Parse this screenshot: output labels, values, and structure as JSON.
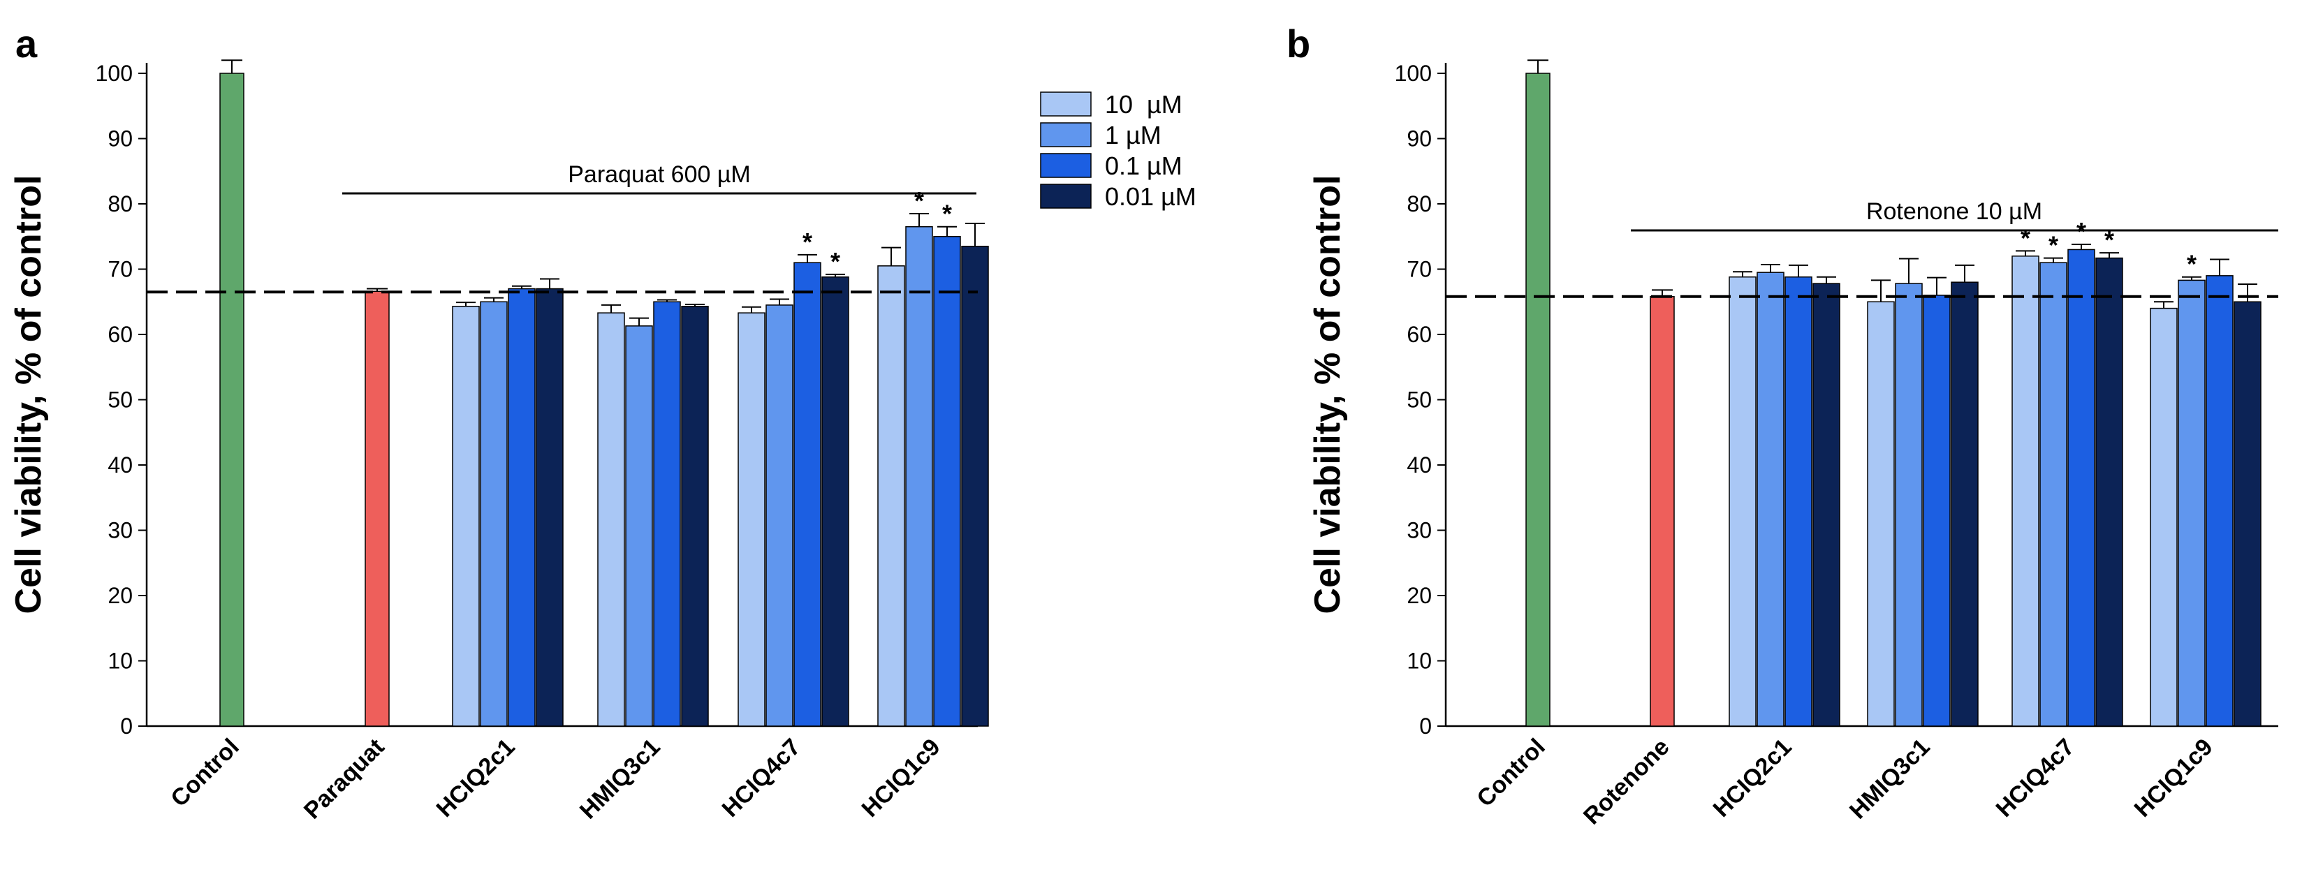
{
  "chart_data": [
    {
      "type": "bar",
      "panel": "a",
      "ylabel": "Cell viability, % of control",
      "ylim": [
        0,
        100
      ],
      "yticks": [
        0,
        10,
        20,
        30,
        40,
        50,
        60,
        70,
        80,
        90,
        100
      ],
      "reference_line": 66.5,
      "treatment_label": "Paraquat 600 µM",
      "controls": [
        {
          "category": "Control",
          "value": 100,
          "error": 2.0,
          "color": "#5fa76b"
        },
        {
          "category": "Paraquat",
          "value": 66.6,
          "error": 0.4,
          "color": "#ee5f5b"
        }
      ],
      "categories": [
        "HCIQ2c1",
        "HMIQ3c1",
        "HCIQ4c7",
        "HCIQ1c9"
      ],
      "series": [
        {
          "name": "10  µM",
          "color": "#a9c7f5",
          "values": [
            64.3,
            63.3,
            63.3,
            70.5
          ],
          "errors": [
            0.6,
            1.2,
            0.9,
            2.8
          ],
          "significant": [
            false,
            false,
            false,
            false
          ]
        },
        {
          "name": "1 µM",
          "color": "#6096ee",
          "values": [
            65.0,
            61.3,
            64.5,
            76.5
          ],
          "errors": [
            0.6,
            1.2,
            0.9,
            2.0
          ],
          "significant": [
            false,
            false,
            false,
            true
          ]
        },
        {
          "name": "0.1 µM",
          "color": "#1c5fe2",
          "values": [
            67.0,
            65.0,
            71.0,
            75.0
          ],
          "errors": [
            0.4,
            0.3,
            1.2,
            1.5
          ],
          "significant": [
            false,
            false,
            true,
            true
          ]
        },
        {
          "name": "0.01 µM",
          "color": "#0c2356",
          "values": [
            67.0,
            64.3,
            68.8,
            73.5
          ],
          "errors": [
            1.5,
            0.3,
            0.4,
            3.5
          ],
          "significant": [
            false,
            false,
            true,
            false
          ]
        }
      ],
      "significance_marker": "*"
    },
    {
      "type": "bar",
      "panel": "b",
      "ylabel": "Cell viability, % of control",
      "ylim": [
        0,
        100
      ],
      "yticks": [
        0,
        10,
        20,
        30,
        40,
        50,
        60,
        70,
        80,
        90,
        100
      ],
      "reference_line": 65.8,
      "treatment_label": "Rotenone 10 µM",
      "controls": [
        {
          "category": "Control",
          "value": 100,
          "error": 2.0,
          "color": "#5fa76b"
        },
        {
          "category": "Rotenone",
          "value": 65.8,
          "error": 1.0,
          "color": "#ee5f5b"
        }
      ],
      "categories": [
        "HCIQ2c1",
        "HMIQ3c1",
        "HCIQ4c7",
        "HCIQ1c9"
      ],
      "series": [
        {
          "name": "10  µM",
          "color": "#a9c7f5",
          "values": [
            68.8,
            65.0,
            72.0,
            64.0
          ],
          "errors": [
            0.8,
            3.3,
            0.8,
            1.0
          ],
          "significant": [
            false,
            false,
            true,
            false
          ]
        },
        {
          "name": "1 µM",
          "color": "#6096ee",
          "values": [
            69.5,
            67.8,
            71.0,
            68.3
          ],
          "errors": [
            1.2,
            3.8,
            0.7,
            0.5
          ],
          "significant": [
            false,
            false,
            true,
            true
          ]
        },
        {
          "name": "0.1 µM",
          "color": "#1c5fe2",
          "values": [
            68.8,
            66.0,
            73.0,
            69.0
          ],
          "errors": [
            1.8,
            2.7,
            0.8,
            2.5
          ],
          "significant": [
            false,
            false,
            true,
            false
          ]
        },
        {
          "name": "0.01 µM",
          "color": "#0c2356",
          "values": [
            67.8,
            68.0,
            71.7,
            65.0
          ],
          "errors": [
            1.0,
            2.6,
            0.8,
            2.7
          ],
          "significant": [
            false,
            false,
            true,
            false
          ]
        }
      ],
      "significance_marker": "*"
    }
  ]
}
